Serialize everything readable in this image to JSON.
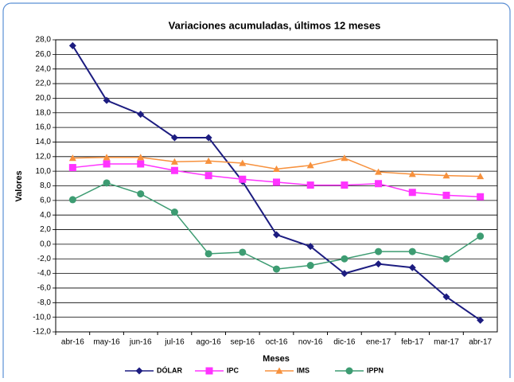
{
  "chart_data": {
    "type": "line",
    "title": "Variaciones acumuladas, últimos 12 meses",
    "x_label": "Meses",
    "y_label": "Valores",
    "categories": [
      "abr-16",
      "may-16",
      "jun-16",
      "jul-16",
      "ago-16",
      "sep-16",
      "oct-16",
      "nov-16",
      "dic-16",
      "ene-17",
      "feb-17",
      "mar-17",
      "abr-17"
    ],
    "series": [
      {
        "name": "DÓLAR",
        "color": "#1c1c80",
        "marker": "diamond",
        "values": [
          27.2,
          19.7,
          17.8,
          14.6,
          14.6,
          8.6,
          1.3,
          -0.3,
          -4.0,
          -2.7,
          -3.2,
          -7.2,
          -10.4
        ]
      },
      {
        "name": "IPC",
        "color": "#ff33ff",
        "marker": "square",
        "values": [
          10.5,
          11.0,
          11.0,
          10.1,
          9.4,
          8.9,
          8.5,
          8.1,
          8.1,
          8.3,
          7.1,
          6.7,
          6.5
        ]
      },
      {
        "name": "IMS",
        "color": "#f7913d",
        "marker": "triangle",
        "values": [
          11.8,
          11.9,
          11.9,
          11.3,
          11.4,
          11.1,
          10.3,
          10.8,
          11.8,
          9.9,
          9.6,
          9.4,
          9.3
        ]
      },
      {
        "name": "IPPN",
        "color": "#3d9c72",
        "marker": "circle",
        "values": [
          6.1,
          8.4,
          6.9,
          4.4,
          -1.3,
          -1.1,
          -3.4,
          -2.9,
          -2.0,
          -1.0,
          -1.0,
          -2.0,
          1.1
        ]
      }
    ],
    "ylim": [
      -12,
      28
    ],
    "yticks": [
      {
        "value": -12,
        "label": "-12,0"
      },
      {
        "value": -10,
        "label": "-10,0"
      },
      {
        "value": -8,
        "label": "-8,0"
      },
      {
        "value": -6,
        "label": "-6,0"
      },
      {
        "value": -4,
        "label": "-4,0"
      },
      {
        "value": -2,
        "label": "-2,0"
      },
      {
        "value": 0,
        "label": "0,0"
      },
      {
        "value": 2,
        "label": "2,0"
      },
      {
        "value": 4,
        "label": "4,0"
      },
      {
        "value": 6,
        "label": "6,0"
      },
      {
        "value": 8,
        "label": "8,0"
      },
      {
        "value": 10,
        "label": "10,0"
      },
      {
        "value": 12,
        "label": "12,0"
      },
      {
        "value": 14,
        "label": "14,0"
      },
      {
        "value": 16,
        "label": "16,0"
      },
      {
        "value": 18,
        "label": "18,0"
      },
      {
        "value": 20,
        "label": "20,0"
      },
      {
        "value": 22,
        "label": "22,0"
      },
      {
        "value": 24,
        "label": "24,0"
      },
      {
        "value": 26,
        "label": "26,0"
      },
      {
        "value": 28,
        "label": "28,0"
      }
    ],
    "grid": true,
    "legend": "bottom"
  }
}
